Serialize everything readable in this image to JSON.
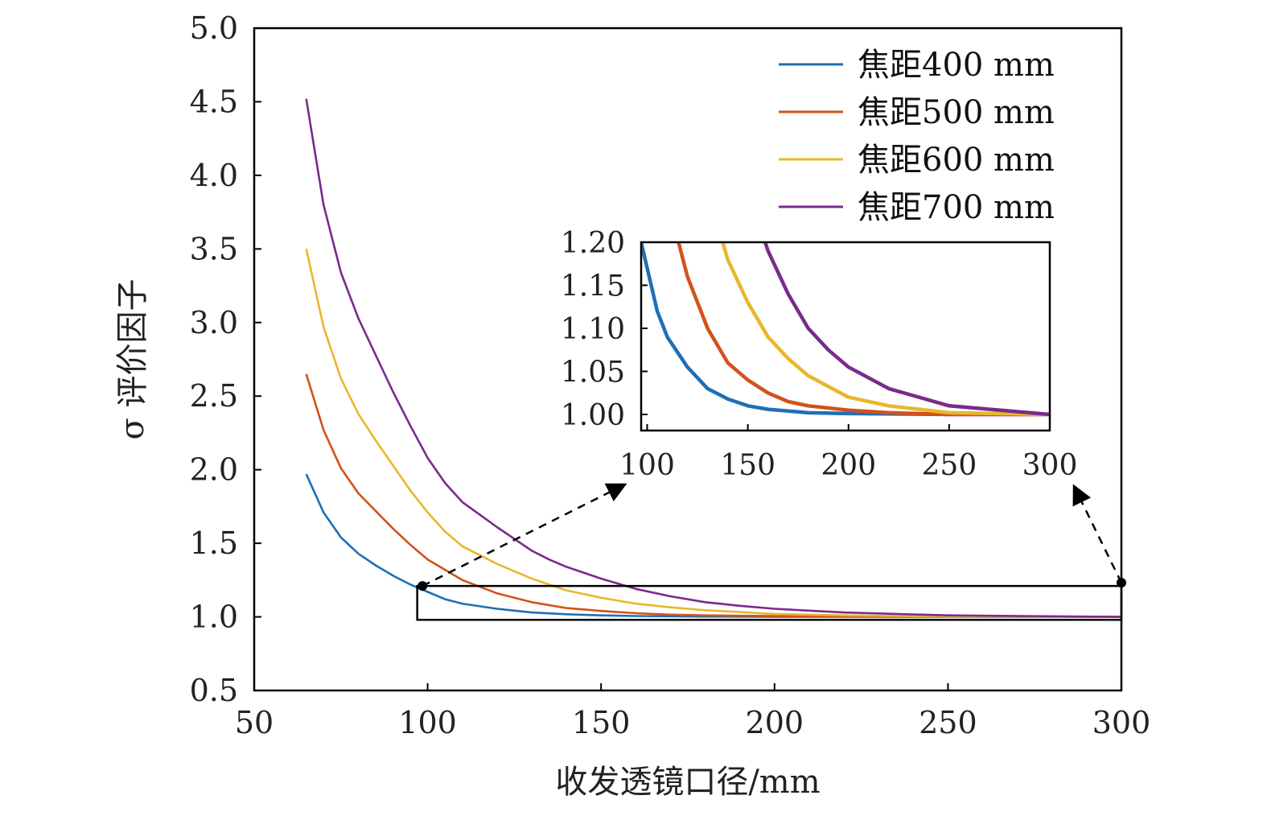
{
  "chart_data": {
    "type": "line",
    "xlabel": "收发透镜口径/mm",
    "ylabel": "σ 评价因子",
    "xlim": [
      50,
      300
    ],
    "ylim": [
      0.5,
      5.0
    ],
    "xticks": [
      "50",
      "100",
      "150",
      "200",
      "250",
      "300"
    ],
    "yticks": [
      "0.5",
      "1.0",
      "1.5",
      "2.0",
      "2.5",
      "3.0",
      "3.5",
      "4.0",
      "4.5",
      "5.0"
    ],
    "legend_position": "top-right",
    "series": [
      {
        "name": "焦距400 mm",
        "color": "#1f6fb5",
        "x": [
          65,
          70,
          75,
          80,
          85,
          90,
          95,
          100,
          105,
          110,
          120,
          130,
          140,
          150,
          160,
          180,
          200,
          250,
          300
        ],
        "y": [
          1.97,
          1.71,
          1.54,
          1.43,
          1.35,
          1.28,
          1.22,
          1.17,
          1.12,
          1.09,
          1.055,
          1.03,
          1.018,
          1.01,
          1.006,
          1.002,
          1.001,
          1.0,
          1.0
        ]
      },
      {
        "name": "焦距500 mm",
        "color": "#d2521c",
        "x": [
          65,
          70,
          75,
          80,
          85,
          90,
          95,
          100,
          110,
          120,
          130,
          140,
          150,
          160,
          170,
          180,
          200,
          220,
          250,
          300
        ],
        "y": [
          2.65,
          2.27,
          2.01,
          1.84,
          1.72,
          1.6,
          1.49,
          1.39,
          1.25,
          1.16,
          1.1,
          1.06,
          1.04,
          1.025,
          1.015,
          1.01,
          1.005,
          1.002,
          1.0,
          1.0
        ]
      },
      {
        "name": "焦距600 mm",
        "color": "#e8b72c",
        "x": [
          65,
          70,
          75,
          80,
          85,
          90,
          95,
          100,
          105,
          110,
          120,
          130,
          140,
          150,
          160,
          170,
          180,
          200,
          220,
          250,
          300
        ],
        "y": [
          3.5,
          2.97,
          2.62,
          2.38,
          2.2,
          2.03,
          1.86,
          1.71,
          1.58,
          1.48,
          1.36,
          1.26,
          1.18,
          1.13,
          1.09,
          1.065,
          1.045,
          1.02,
          1.01,
          1.002,
          1.0
        ]
      },
      {
        "name": "焦距700 mm",
        "color": "#7a2a8c",
        "x": [
          65,
          70,
          75,
          80,
          85,
          90,
          95,
          100,
          105,
          110,
          120,
          130,
          135,
          140,
          150,
          160,
          170,
          180,
          190,
          200,
          220,
          250,
          300
        ],
        "y": [
          4.52,
          3.8,
          3.34,
          3.03,
          2.78,
          2.53,
          2.3,
          2.08,
          1.91,
          1.78,
          1.61,
          1.45,
          1.39,
          1.34,
          1.26,
          1.19,
          1.14,
          1.1,
          1.075,
          1.055,
          1.03,
          1.01,
          1.0
        ]
      }
    ],
    "inset": {
      "xlim": [
        97,
        300
      ],
      "ylim": [
        0.99,
        1.2
      ],
      "xticks": [
        "100",
        "150",
        "200",
        "250",
        "300"
      ],
      "yticks": [
        "1.00",
        "1.05",
        "1.10",
        "1.15",
        "1.20"
      ],
      "zoom_region": {
        "xlim": [
          97,
          300
        ],
        "ylim": [
          0.98,
          1.21
        ]
      }
    }
  }
}
